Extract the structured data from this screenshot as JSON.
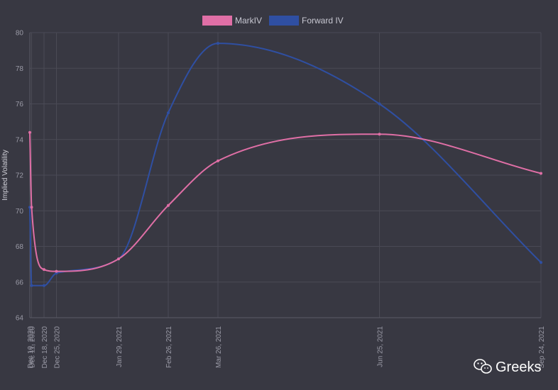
{
  "chart_data": {
    "type": "line",
    "ylabel": "Implied Volatility",
    "ylim": [
      64,
      80
    ],
    "yticks": [
      "64",
      "66",
      "68",
      "70",
      "72",
      "74",
      "76",
      "78",
      "80"
    ],
    "grid": true,
    "legend_position": "top-center",
    "x_labels": [
      "Dec 10, 2020",
      "Dec 11, 2020",
      "Dec 18, 2020",
      "Dec 25, 2020",
      "Jan 29, 2021",
      "Feb 26, 2021",
      "Mar 26, 2021",
      "Jun 25, 2021",
      "Sep 24, 2021"
    ],
    "x_days": [
      0,
      1,
      8,
      15,
      50,
      78,
      106,
      197,
      288
    ],
    "series": [
      {
        "name": "MarkIV",
        "color": "#e06fa6",
        "values": [
          74.4,
          70.2,
          66.7,
          66.6,
          67.3,
          70.3,
          72.8,
          74.3,
          72.1
        ]
      },
      {
        "name": "Forward IV",
        "color": "#2f4fa2",
        "values": [
          70.2,
          65.8,
          65.8,
          66.5,
          67.3,
          75.5,
          79.4,
          76.0,
          67.1
        ]
      }
    ]
  },
  "watermark": {
    "icon": "wechat-icon",
    "text": "Greeks"
  }
}
